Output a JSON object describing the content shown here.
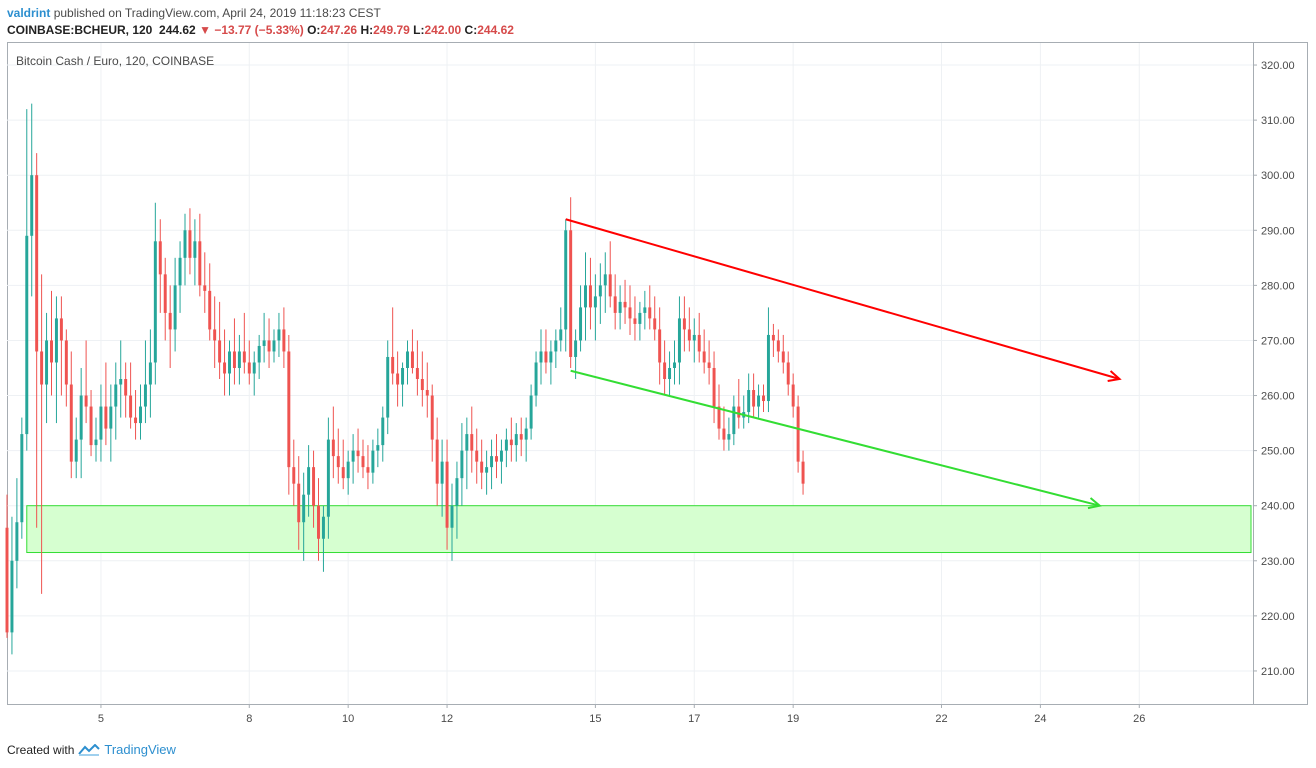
{
  "header": {
    "username": "valdrint",
    "published_text": "published on TradingView.com, April 24, 2019 11:18:23 CEST"
  },
  "ticker": {
    "symbol": "COINBASE:BCHEUR, 120",
    "last": "244.62",
    "change_arrow": "▼",
    "change": "−13.77 (−5.33%)",
    "open_label": "O:",
    "open": "247.26",
    "high_label": "H:",
    "high": "249.79",
    "low_label": "L:",
    "low": "242.00",
    "close_label": "C:",
    "close": "244.62"
  },
  "footer": {
    "created_with": "Created with",
    "brand": "TradingView",
    "logo_icon": "tradingview-logo-icon"
  },
  "colors": {
    "up": "#26a69a",
    "down": "#ef5350",
    "resistance": "#ff0000",
    "support": "#33dd33",
    "zone_fill": "#d6ffd0",
    "zone_stroke": "#33dd33",
    "grid": "#eef1f4"
  },
  "chart_data": {
    "type": "candlestick",
    "title": "Bitcoin Cash / Euro, 120, COINBASE",
    "ylim": [
      204,
      324
    ],
    "y_ticks": [
      "210.00",
      "220.00",
      "230.00",
      "240.00",
      "250.00",
      "260.00",
      "270.00",
      "280.00",
      "290.00",
      "300.00",
      "310.00",
      "320.00"
    ],
    "x_ticks": [
      {
        "label": "5",
        "x": 5
      },
      {
        "label": "8",
        "x": 8
      },
      {
        "label": "10",
        "x": 10
      },
      {
        "label": "12",
        "x": 12
      },
      {
        "label": "15",
        "x": 15
      },
      {
        "label": "17",
        "x": 17
      },
      {
        "label": "19",
        "x": 19
      },
      {
        "label": "22",
        "x": 22
      },
      {
        "label": "24",
        "x": 24
      },
      {
        "label": "26",
        "x": 26
      }
    ],
    "xlim": [
      3.1,
      28.3
    ],
    "candles": [
      [
        3.1,
        236,
        242,
        216,
        217
      ],
      [
        3.2,
        217,
        238,
        213,
        230
      ],
      [
        3.3,
        230,
        245,
        225,
        237
      ],
      [
        3.4,
        237,
        256,
        234,
        253
      ],
      [
        3.5,
        253,
        312,
        250,
        289
      ],
      [
        3.6,
        289,
        313,
        278,
        300
      ],
      [
        3.7,
        300,
        304,
        236,
        268
      ],
      [
        3.8,
        268,
        282,
        224,
        262
      ],
      [
        3.9,
        262,
        275,
        255,
        270
      ],
      [
        4.0,
        270,
        279,
        260,
        266
      ],
      [
        4.1,
        266,
        278,
        255,
        274
      ],
      [
        4.2,
        274,
        278,
        260,
        270
      ],
      [
        4.3,
        270,
        272,
        258,
        262
      ],
      [
        4.4,
        262,
        268,
        245,
        248
      ],
      [
        4.5,
        248,
        256,
        245,
        252
      ],
      [
        4.6,
        252,
        265,
        245,
        260
      ],
      [
        4.7,
        260,
        270,
        255,
        258
      ],
      [
        4.8,
        258,
        261,
        249,
        251
      ],
      [
        4.9,
        251,
        256,
        248,
        252
      ],
      [
        5.0,
        252,
        262,
        248,
        258
      ],
      [
        5.1,
        258,
        266,
        251,
        254
      ],
      [
        5.2,
        254,
        262,
        248,
        258
      ],
      [
        5.3,
        258,
        266,
        252,
        262
      ],
      [
        5.4,
        262,
        270,
        256,
        263
      ],
      [
        5.5,
        263,
        266,
        256,
        260
      ],
      [
        5.6,
        260,
        266,
        254,
        256
      ],
      [
        5.7,
        256,
        261,
        252,
        255
      ],
      [
        5.8,
        255,
        262,
        252,
        258
      ],
      [
        5.9,
        258,
        270,
        255,
        262
      ],
      [
        6.0,
        262,
        272,
        256,
        266
      ],
      [
        6.1,
        266,
        295,
        262,
        288
      ],
      [
        6.2,
        288,
        292,
        275,
        282
      ],
      [
        6.3,
        282,
        285,
        270,
        275
      ],
      [
        6.4,
        275,
        280,
        265,
        272
      ],
      [
        6.5,
        272,
        285,
        268,
        280
      ],
      [
        6.6,
        280,
        288,
        275,
        285
      ],
      [
        6.7,
        285,
        293,
        280,
        290
      ],
      [
        6.8,
        290,
        294,
        282,
        285
      ],
      [
        6.9,
        285,
        292,
        280,
        288
      ],
      [
        7.0,
        288,
        293,
        278,
        280
      ],
      [
        7.1,
        280,
        286,
        275,
        279
      ],
      [
        7.2,
        279,
        284,
        270,
        272
      ],
      [
        7.3,
        272,
        278,
        265,
        270
      ],
      [
        7.4,
        270,
        277,
        263,
        266
      ],
      [
        7.5,
        266,
        272,
        260,
        264
      ],
      [
        7.6,
        264,
        270,
        260,
        268
      ],
      [
        7.7,
        268,
        274,
        262,
        265
      ],
      [
        7.8,
        265,
        271,
        262,
        268
      ],
      [
        7.9,
        268,
        275,
        264,
        266
      ],
      [
        8.0,
        266,
        270,
        262,
        264
      ],
      [
        8.1,
        264,
        268,
        260,
        266
      ],
      [
        8.2,
        266,
        271,
        263,
        269
      ],
      [
        8.3,
        269,
        275,
        266,
        270
      ],
      [
        8.4,
        270,
        274,
        265,
        268
      ],
      [
        8.5,
        268,
        272,
        266,
        270
      ],
      [
        8.6,
        270,
        275,
        267,
        272
      ],
      [
        8.7,
        272,
        276,
        265,
        268
      ],
      [
        8.8,
        268,
        271,
        242,
        247
      ],
      [
        8.9,
        247,
        252,
        240,
        244
      ],
      [
        9.0,
        244,
        249,
        232,
        237
      ],
      [
        9.1,
        237,
        246,
        230,
        242
      ],
      [
        9.2,
        242,
        251,
        238,
        247
      ],
      [
        9.3,
        247,
        250,
        236,
        240
      ],
      [
        9.4,
        240,
        245,
        230,
        234
      ],
      [
        9.5,
        234,
        240,
        228,
        238
      ],
      [
        9.6,
        238,
        256,
        234,
        252
      ],
      [
        9.7,
        252,
        258,
        245,
        249
      ],
      [
        9.8,
        249,
        254,
        244,
        247
      ],
      [
        9.9,
        247,
        252,
        243,
        245
      ],
      [
        10.0,
        245,
        250,
        242,
        248
      ],
      [
        10.1,
        248,
        253,
        244,
        250
      ],
      [
        10.2,
        250,
        254,
        246,
        249
      ],
      [
        10.3,
        249,
        252,
        245,
        247
      ],
      [
        10.4,
        247,
        251,
        243,
        246
      ],
      [
        10.5,
        246,
        252,
        244,
        250
      ],
      [
        10.6,
        250,
        254,
        247,
        251
      ],
      [
        10.7,
        251,
        258,
        248,
        256
      ],
      [
        10.8,
        256,
        270,
        253,
        267
      ],
      [
        10.9,
        267,
        276,
        262,
        264
      ],
      [
        11.0,
        264,
        268,
        258,
        262
      ],
      [
        11.1,
        262,
        266,
        258,
        265
      ],
      [
        11.2,
        265,
        270,
        262,
        268
      ],
      [
        11.3,
        268,
        272,
        264,
        265
      ],
      [
        11.4,
        265,
        270,
        260,
        263
      ],
      [
        11.5,
        263,
        268,
        258,
        261
      ],
      [
        11.6,
        261,
        266,
        256,
        260
      ],
      [
        11.7,
        260,
        262,
        248,
        252
      ],
      [
        11.8,
        252,
        256,
        240,
        244
      ],
      [
        11.9,
        244,
        252,
        238,
        248
      ],
      [
        12.0,
        248,
        252,
        232,
        236
      ],
      [
        12.1,
        236,
        244,
        230,
        240
      ],
      [
        12.2,
        240,
        248,
        234,
        245
      ],
      [
        12.3,
        245,
        255,
        240,
        250
      ],
      [
        12.4,
        250,
        256,
        243,
        253
      ],
      [
        12.5,
        253,
        258,
        246,
        250
      ],
      [
        12.6,
        250,
        254,
        244,
        248
      ],
      [
        12.7,
        248,
        252,
        243,
        246
      ],
      [
        12.8,
        246,
        250,
        242,
        247
      ],
      [
        12.9,
        247,
        252,
        243,
        249
      ],
      [
        13.0,
        249,
        253,
        245,
        248
      ],
      [
        13.1,
        248,
        252,
        244,
        250
      ],
      [
        13.2,
        250,
        254,
        247,
        252
      ],
      [
        13.3,
        252,
        256,
        248,
        251
      ],
      [
        13.4,
        251,
        255,
        248,
        253
      ],
      [
        13.5,
        253,
        256,
        249,
        252
      ],
      [
        13.6,
        252,
        256,
        248,
        254
      ],
      [
        13.7,
        254,
        262,
        252,
        260
      ],
      [
        13.8,
        260,
        268,
        258,
        266
      ],
      [
        13.9,
        266,
        272,
        262,
        268
      ],
      [
        14.0,
        268,
        272,
        264,
        266
      ],
      [
        14.1,
        266,
        270,
        262,
        268
      ],
      [
        14.2,
        268,
        272,
        265,
        270
      ],
      [
        14.3,
        270,
        276,
        268,
        272
      ],
      [
        14.4,
        272,
        292,
        268,
        290
      ],
      [
        14.5,
        290,
        296,
        265,
        267
      ],
      [
        14.6,
        267,
        272,
        263,
        270
      ],
      [
        14.7,
        270,
        280,
        268,
        276
      ],
      [
        14.8,
        276,
        286,
        270,
        280
      ],
      [
        14.9,
        280,
        285,
        272,
        276
      ],
      [
        15.0,
        276,
        282,
        270,
        278
      ],
      [
        15.1,
        278,
        284,
        273,
        280
      ],
      [
        15.2,
        280,
        286,
        275,
        282
      ],
      [
        15.3,
        282,
        288,
        276,
        278
      ],
      [
        15.4,
        278,
        282,
        272,
        275
      ],
      [
        15.5,
        275,
        280,
        272,
        277
      ],
      [
        15.6,
        277,
        281,
        273,
        276
      ],
      [
        15.7,
        276,
        280,
        271,
        274
      ],
      [
        15.8,
        274,
        278,
        270,
        273
      ],
      [
        15.9,
        273,
        277,
        270,
        275
      ],
      [
        16.0,
        275,
        279,
        272,
        276
      ],
      [
        16.1,
        276,
        280,
        272,
        274
      ],
      [
        16.2,
        274,
        278,
        270,
        272
      ],
      [
        16.3,
        272,
        276,
        262,
        266
      ],
      [
        16.4,
        266,
        270,
        260,
        263
      ],
      [
        16.5,
        263,
        268,
        260,
        265
      ],
      [
        16.6,
        265,
        270,
        262,
        266
      ],
      [
        16.7,
        266,
        278,
        262,
        274
      ],
      [
        16.8,
        274,
        278,
        268,
        272
      ],
      [
        16.9,
        272,
        276,
        268,
        270
      ],
      [
        17.0,
        270,
        274,
        266,
        271
      ],
      [
        17.1,
        271,
        275,
        266,
        268
      ],
      [
        17.2,
        268,
        272,
        264,
        266
      ],
      [
        17.3,
        266,
        270,
        262,
        265
      ],
      [
        17.4,
        265,
        268,
        255,
        258
      ],
      [
        17.5,
        258,
        262,
        252,
        254
      ],
      [
        17.6,
        254,
        258,
        250,
        252
      ],
      [
        17.7,
        252,
        256,
        250,
        253
      ],
      [
        17.8,
        253,
        260,
        251,
        258
      ],
      [
        17.9,
        258,
        263,
        254,
        256
      ],
      [
        18.0,
        256,
        260,
        254,
        257
      ],
      [
        18.1,
        257,
        264,
        255,
        261
      ],
      [
        18.2,
        261,
        264,
        256,
        258
      ],
      [
        18.3,
        258,
        262,
        256,
        260
      ],
      [
        18.4,
        260,
        262,
        257,
        259
      ],
      [
        18.5,
        259,
        276,
        257,
        271
      ],
      [
        18.6,
        271,
        273,
        267,
        270
      ],
      [
        18.7,
        270,
        272,
        266,
        268
      ],
      [
        18.8,
        268,
        271,
        264,
        266
      ],
      [
        18.9,
        266,
        268,
        260,
        262
      ],
      [
        19.0,
        262,
        264,
        256,
        258
      ],
      [
        19.1,
        258,
        260,
        246,
        248
      ],
      [
        19.2,
        248,
        250,
        242,
        244
      ]
    ],
    "resistance_line": {
      "from": [
        14.4,
        292
      ],
      "to": [
        25.6,
        263
      ]
    },
    "support_line": {
      "from": [
        14.5,
        264.5
      ],
      "to": [
        25.2,
        240
      ]
    },
    "support_zone": {
      "y_low": 231.5,
      "y_high": 240,
      "x_from": 3.5,
      "x_to": 28.3
    }
  }
}
